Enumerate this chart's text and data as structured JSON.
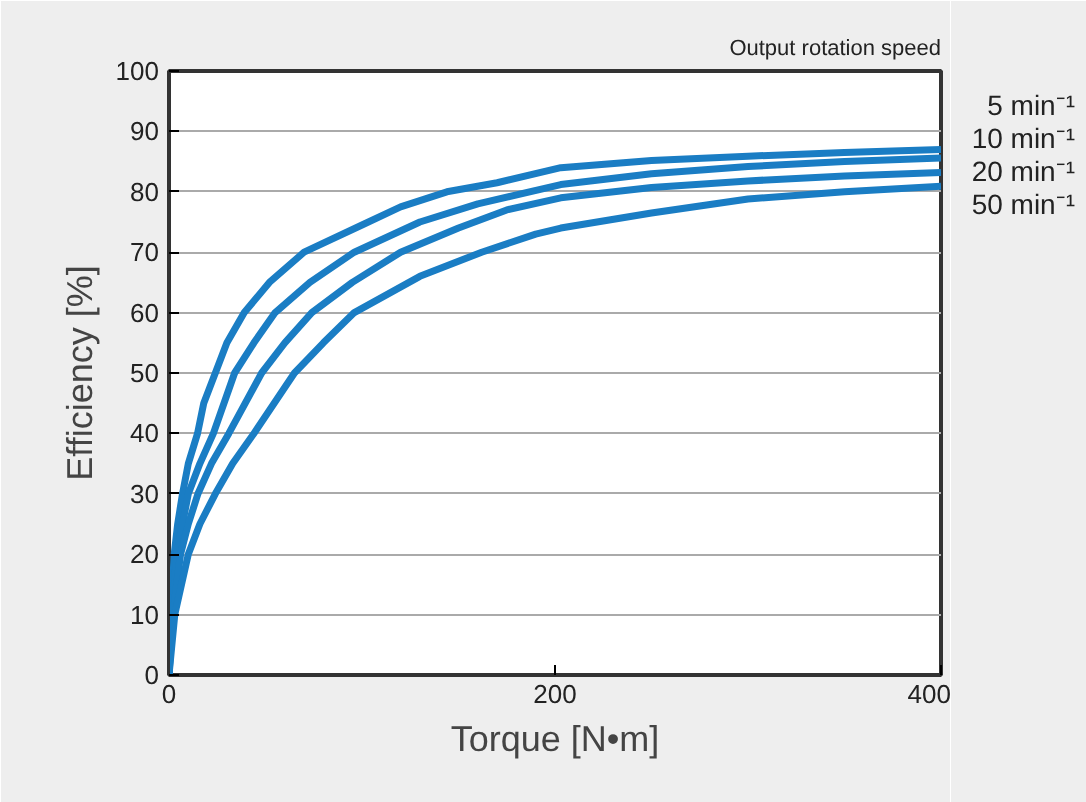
{
  "chart_data": {
    "type": "line",
    "xlabel": "Torque [N•m]",
    "ylabel": "Efficiency [%]",
    "legend_title": "Output rotation speed",
    "xlim": [
      0,
      400
    ],
    "xticks": [
      0,
      200,
      400
    ],
    "ylim": [
      0,
      100
    ],
    "yticks": [
      0,
      10,
      20,
      30,
      40,
      50,
      60,
      70,
      80,
      90,
      100
    ],
    "grid": "y",
    "marker": "none",
    "line_style": "solid",
    "series": [
      {
        "name": "5 min⁻¹",
        "color": "#1a7dc4",
        "x": [
          0,
          1,
          2.7,
          4.5,
          7,
          10,
          14.8,
          18,
          24,
          30,
          39,
          52,
          70,
          100,
          120,
          144,
          170,
          203,
          250,
          300,
          350,
          400
        ],
        "values": [
          0,
          10,
          20,
          25,
          30,
          35,
          40,
          45,
          50,
          55,
          60,
          65,
          70,
          74.5,
          77.5,
          80,
          81.5,
          84,
          85.2,
          85.9,
          86.5,
          87
        ]
      },
      {
        "name": "10 min⁻¹",
        "color": "#1a7dc4",
        "x": [
          0,
          1.5,
          4,
          7,
          10,
          16,
          23,
          34,
          44,
          55,
          73,
          96,
          130,
          160,
          203,
          250,
          300,
          350,
          400
        ],
        "values": [
          0,
          10,
          20,
          25,
          30,
          35,
          40,
          50,
          55,
          60,
          65,
          70,
          75,
          78,
          81.2,
          83,
          84.2,
          85,
          85.6
        ]
      },
      {
        "name": "20 min⁻¹",
        "color": "#1a7dc4",
        "x": [
          0,
          2,
          6,
          10,
          15,
          22,
          31,
          48,
          60,
          74,
          95,
          120,
          150,
          175,
          203,
          250,
          300,
          350,
          400
        ],
        "values": [
          0,
          10,
          20,
          25,
          30,
          35,
          40,
          50,
          55,
          60,
          65,
          70,
          74,
          77,
          79,
          80.7,
          81.8,
          82.6,
          83.2
        ]
      },
      {
        "name": "50 min⁻¹",
        "color": "#1a7dc4",
        "x": [
          0,
          3,
          10,
          16,
          24,
          33,
          44,
          65,
          80,
          96,
          130,
          162,
          190,
          203,
          250,
          300,
          350,
          400
        ],
        "values": [
          0,
          10,
          20,
          25,
          30,
          35,
          40,
          50,
          55,
          60,
          66,
          70,
          73,
          74,
          76.5,
          78.8,
          80,
          80.9
        ]
      }
    ]
  }
}
